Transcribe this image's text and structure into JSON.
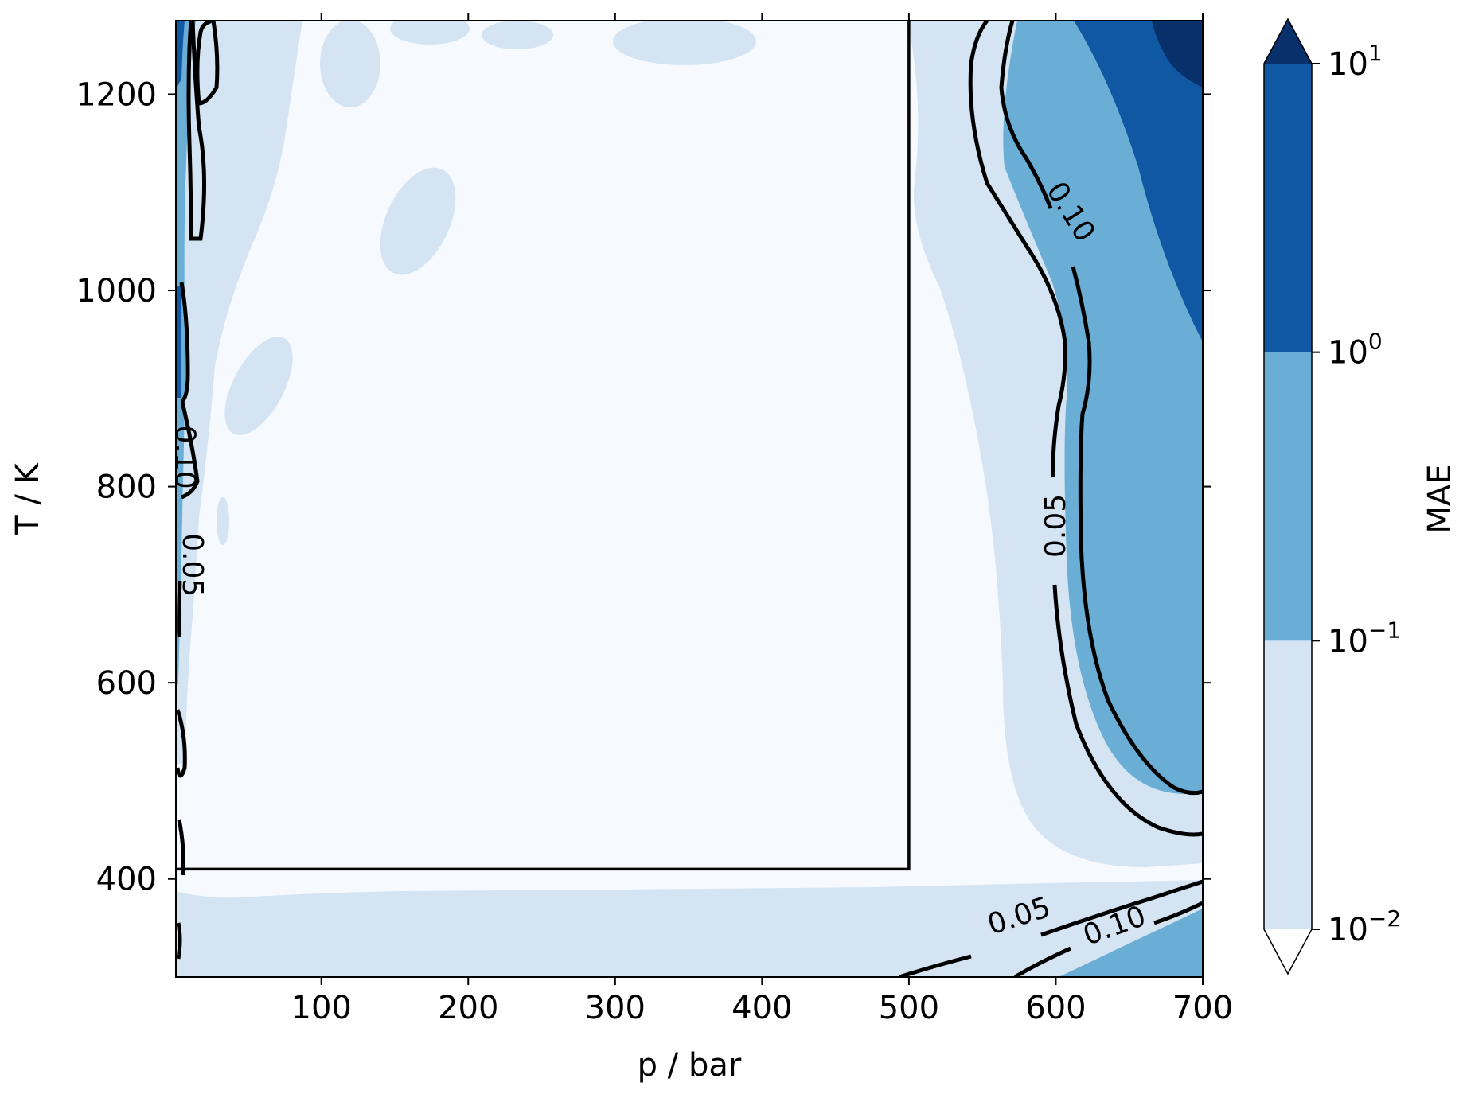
{
  "chart_data": {
    "type": "contour",
    "xlabel": "p / bar",
    "ylabel": "T / K",
    "colorbar_label": "MAE",
    "xlim": [
      1,
      700
    ],
    "ylim": [
      300,
      1275
    ],
    "x_ticks": [
      100,
      200,
      300,
      400,
      500,
      600,
      700
    ],
    "y_ticks": [
      400,
      600,
      800,
      1000,
      1200
    ],
    "colorbar_scale": "log",
    "colorbar_ticks": [
      {
        "value": 0.01,
        "base": "10",
        "exp": "−2"
      },
      {
        "value": 0.1,
        "base": "10",
        "exp": "−1"
      },
      {
        "value": 1,
        "base": "10",
        "exp": "0"
      },
      {
        "value": 10,
        "base": "10",
        "exp": "1"
      }
    ],
    "color_levels": [
      {
        "range": [
          0,
          0.01
        ],
        "color": "#ffffff"
      },
      {
        "range": [
          0.01,
          0.1
        ],
        "color": "#d5e4f3"
      },
      {
        "range": [
          0.1,
          1
        ],
        "color": "#6aaed6"
      },
      {
        "range": [
          1,
          10
        ],
        "color": "#1158a4"
      },
      {
        "range": [
          10,
          null
        ],
        "color": "#08306b"
      }
    ],
    "background_color": "#f6faff",
    "contour_lines": [
      0.05,
      0.1
    ],
    "contour_labels": [
      {
        "text": "0.10",
        "x": 610,
        "y": 1080
      },
      {
        "text": "0.05",
        "x": 600,
        "y": 760
      },
      {
        "text": "0.05",
        "x": 575,
        "y": 362
      },
      {
        "text": "0.10",
        "x": 640,
        "y": 352
      },
      {
        "text": "0.10",
        "x": 7,
        "y": 830
      },
      {
        "text": "0.05",
        "x": 12,
        "y": 720
      }
    ],
    "training_region": {
      "p_min": 1,
      "p_max": 500,
      "T_min": 410,
      "T_max": 1275
    }
  }
}
